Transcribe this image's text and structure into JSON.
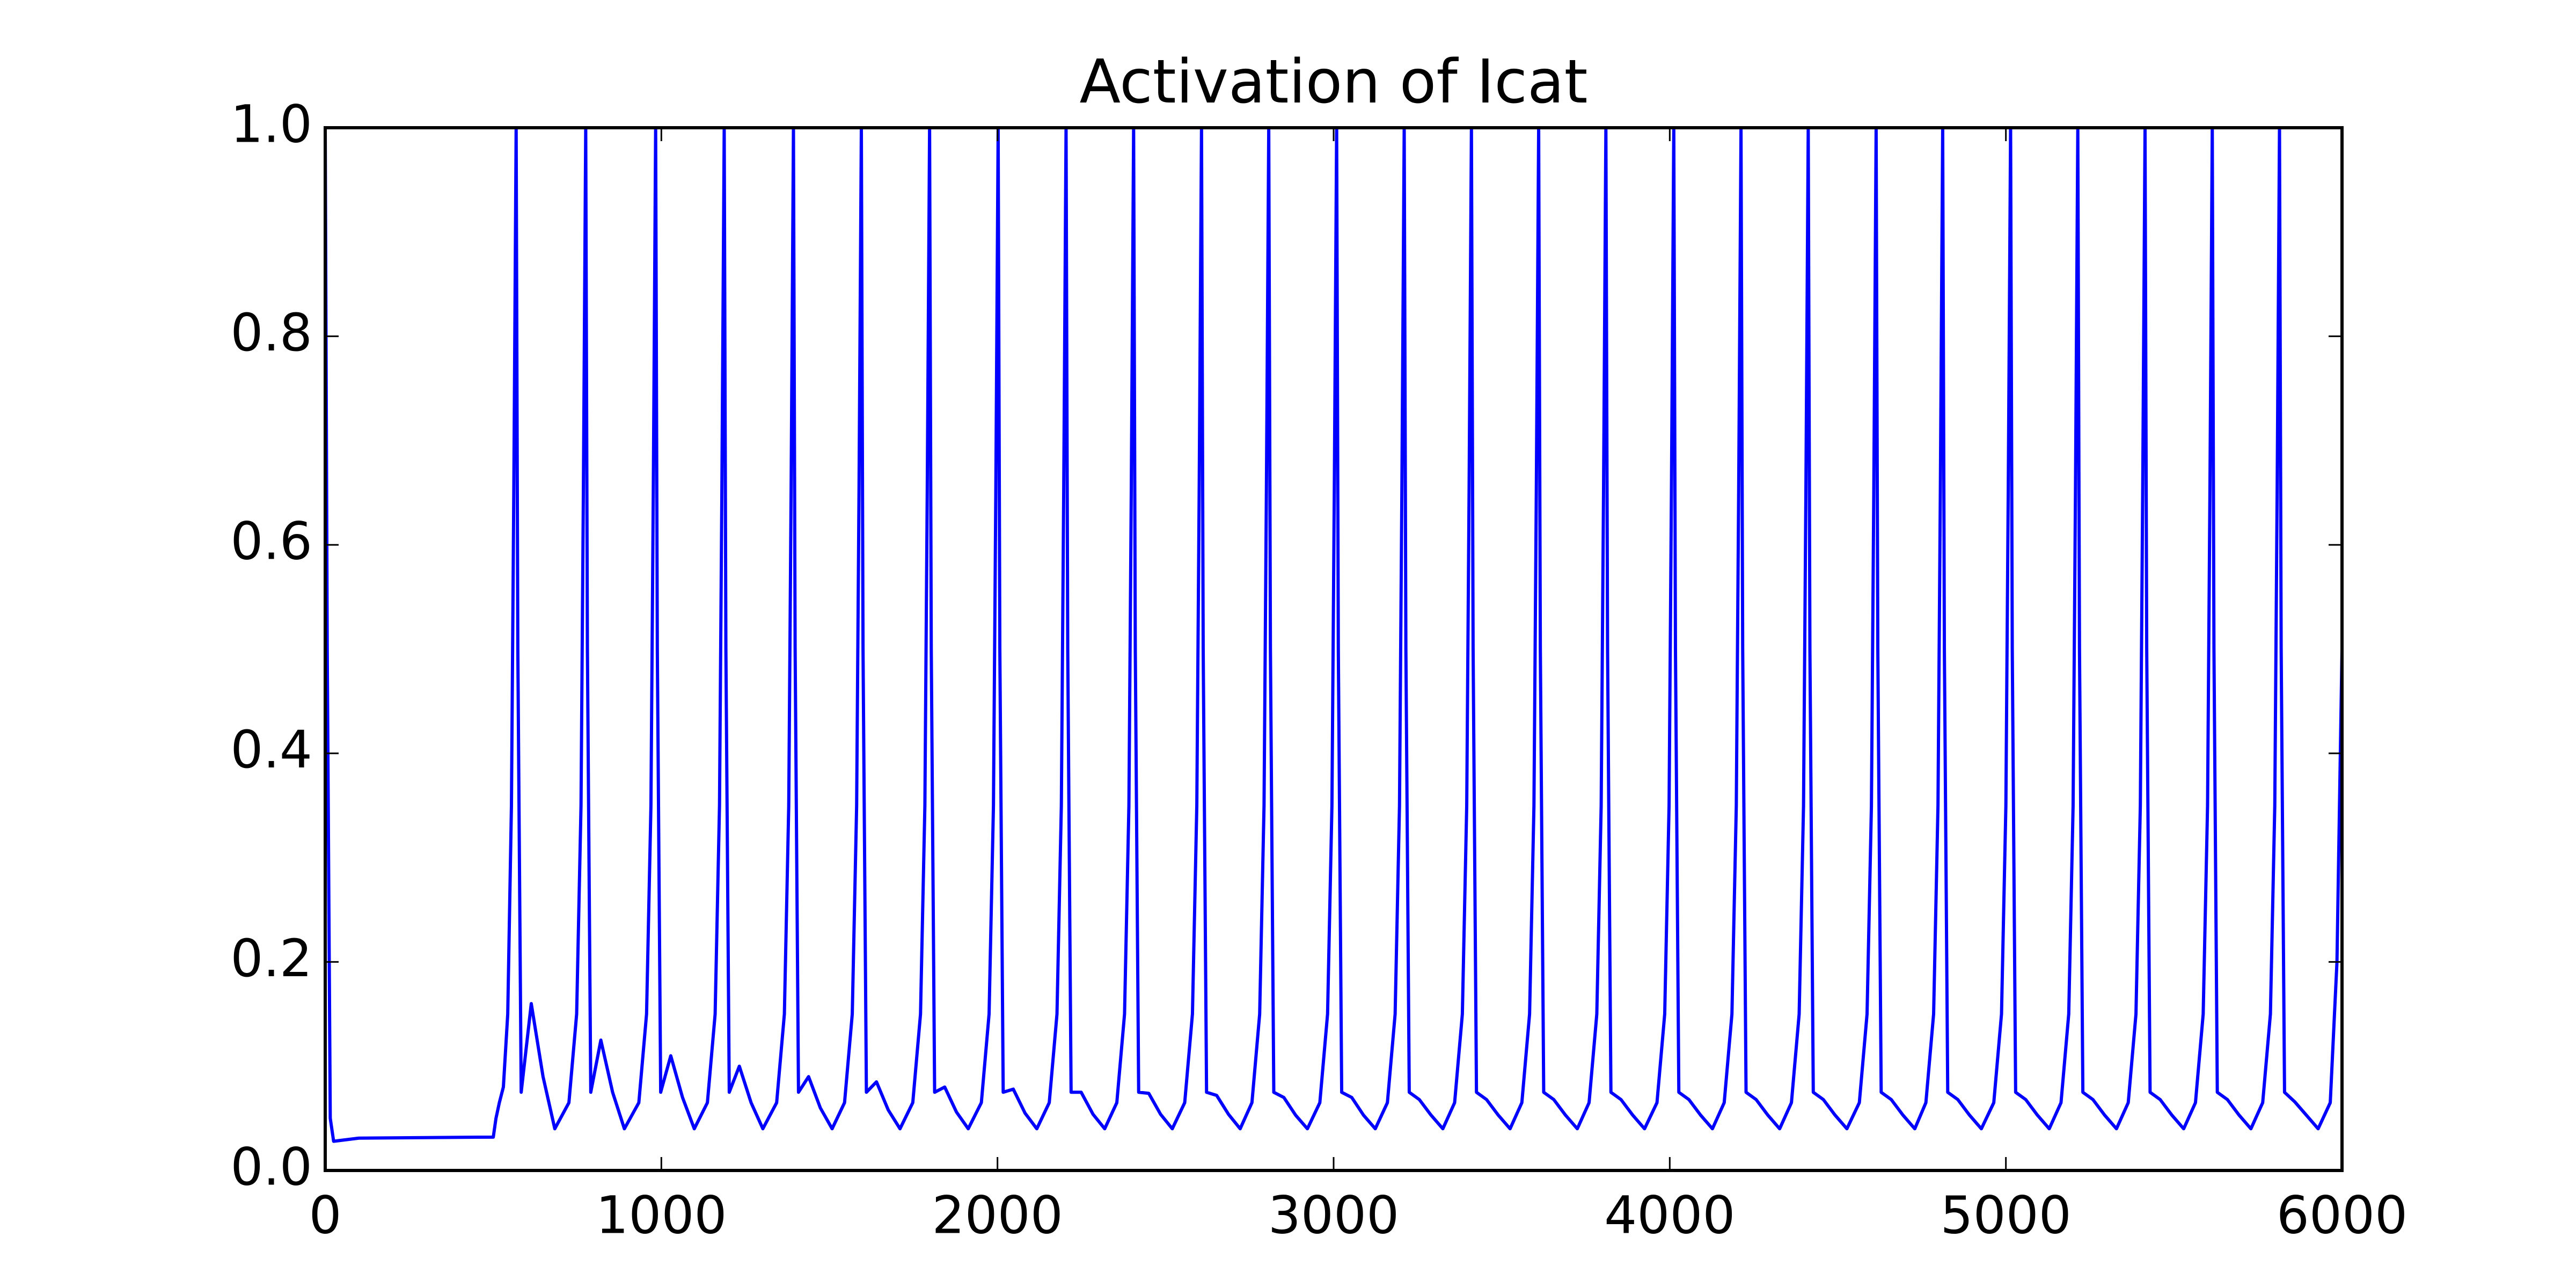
{
  "chart_data": {
    "type": "line",
    "title": "Activation of Icat",
    "color": "#0000ff",
    "xlim": [
      0,
      6000
    ],
    "ylim": [
      0,
      1
    ],
    "xticks": [
      0,
      1000,
      2000,
      3000,
      4000,
      5000,
      6000
    ],
    "yticks": [
      {
        "value": 0,
        "label": "0.0"
      },
      0.2,
      0.4,
      0.6,
      0.8,
      {
        "value": 1,
        "label": "1.0"
      }
    ],
    "x": [
      0,
      6,
      15,
      25,
      100,
      500,
      508,
      518,
      530,
      543,
      554,
      561,
      568,
      573,
      583,
      613,
      648,
      683,
      725,
      748,
      761,
      768,
      775,
      780,
      790,
      820,
      855,
      890,
      933,
      956,
      969,
      976,
      983,
      988,
      998,
      1028,
      1063,
      1098,
      1137,
      1160,
      1173,
      1180,
      1187,
      1192,
      1202,
      1232,
      1267,
      1302,
      1343,
      1366,
      1379,
      1386,
      1393,
      1398,
      1408,
      1438,
      1473,
      1508,
      1545,
      1568,
      1581,
      1588,
      1595,
      1600,
      1610,
      1640,
      1675,
      1710,
      1748,
      1771,
      1784,
      1791,
      1798,
      1803,
      1813,
      1843,
      1878,
      1913,
      1952,
      1975,
      1988,
      1995,
      2002,
      2007,
      2017,
      2047,
      2082,
      2117,
      2154,
      2177,
      2190,
      2197,
      2204,
      2209,
      2219,
      2249,
      2284,
      2319,
      2355,
      2378,
      2391,
      2398,
      2405,
      2410,
      2420,
      2450,
      2485,
      2520,
      2557,
      2580,
      2593,
      2600,
      2607,
      2612,
      2622,
      2652,
      2687,
      2722,
      2757,
      2780,
      2793,
      2800,
      2807,
      2812,
      2822,
      2852,
      2887,
      2922,
      2959,
      2982,
      2995,
      3002,
      3009,
      3014,
      3024,
      3054,
      3089,
      3124,
      3160,
      3183,
      3196,
      3203,
      3210,
      3215,
      3225,
      3255,
      3290,
      3325,
      3360,
      3383,
      3396,
      3403,
      3410,
      3415,
      3425,
      3455,
      3490,
      3525,
      3560,
      3583,
      3596,
      3603,
      3610,
      3615,
      3625,
      3655,
      3690,
      3725,
      3760,
      3783,
      3796,
      3803,
      3810,
      3815,
      3825,
      3855,
      3890,
      3925,
      3962,
      3985,
      3998,
      4005,
      4012,
      4017,
      4027,
      4057,
      4092,
      4127,
      4162,
      4185,
      4198,
      4205,
      4212,
      4217,
      4227,
      4257,
      4292,
      4327,
      4362,
      4385,
      4398,
      4405,
      4412,
      4417,
      4427,
      4457,
      4492,
      4527,
      4564,
      4587,
      4600,
      4607,
      4614,
      4619,
      4629,
      4659,
      4694,
      4729,
      4762,
      4785,
      4798,
      4805,
      4812,
      4817,
      4827,
      4857,
      4892,
      4927,
      4964,
      4987,
      5000,
      5007,
      5014,
      5019,
      5029,
      5059,
      5094,
      5129,
      5164,
      5187,
      5200,
      5207,
      5214,
      5219,
      5229,
      5259,
      5294,
      5329,
      5364,
      5387,
      5400,
      5407,
      5414,
      5419,
      5429,
      5459,
      5494,
      5529,
      5564,
      5587,
      5600,
      5607,
      5614,
      5619,
      5629,
      5659,
      5694,
      5729,
      5764,
      5787,
      5800,
      5807,
      5814,
      5819,
      5829,
      5859,
      5894,
      5929,
      5965,
      5985,
      6000
    ],
    "values": [
      1.0,
      0.5,
      0.05,
      0.028,
      0.031,
      0.032,
      0.05,
      0.065,
      0.08,
      0.15,
      0.35,
      0.65,
      1.0,
      0.5,
      0.075,
      0.16,
      0.09,
      0.04,
      0.065,
      0.15,
      0.35,
      0.65,
      1.0,
      0.5,
      0.075,
      0.125,
      0.075,
      0.04,
      0.065,
      0.15,
      0.35,
      0.65,
      1.0,
      0.5,
      0.075,
      0.11,
      0.07,
      0.04,
      0.065,
      0.15,
      0.35,
      0.65,
      1.0,
      0.5,
      0.075,
      0.1,
      0.065,
      0.04,
      0.065,
      0.15,
      0.35,
      0.65,
      1.0,
      0.5,
      0.075,
      0.09,
      0.06,
      0.04,
      0.065,
      0.15,
      0.35,
      0.65,
      1.0,
      0.5,
      0.075,
      0.085,
      0.058,
      0.04,
      0.065,
      0.15,
      0.35,
      0.65,
      1.0,
      0.5,
      0.075,
      0.08,
      0.056,
      0.04,
      0.065,
      0.15,
      0.35,
      0.65,
      1.0,
      0.5,
      0.075,
      0.078,
      0.055,
      0.04,
      0.065,
      0.15,
      0.35,
      0.65,
      1.0,
      0.5,
      0.075,
      0.075,
      0.054,
      0.04,
      0.065,
      0.15,
      0.35,
      0.65,
      1.0,
      0.5,
      0.075,
      0.074,
      0.054,
      0.04,
      0.065,
      0.15,
      0.35,
      0.65,
      1.0,
      0.5,
      0.075,
      0.072,
      0.054,
      0.04,
      0.065,
      0.15,
      0.35,
      0.65,
      1.0,
      0.5,
      0.075,
      0.07,
      0.053,
      0.04,
      0.065,
      0.15,
      0.35,
      0.65,
      1.0,
      0.5,
      0.075,
      0.07,
      0.053,
      0.04,
      0.065,
      0.15,
      0.35,
      0.65,
      1.0,
      0.5,
      0.075,
      0.068,
      0.053,
      0.04,
      0.065,
      0.15,
      0.35,
      0.65,
      1.0,
      0.5,
      0.075,
      0.068,
      0.053,
      0.04,
      0.065,
      0.15,
      0.35,
      0.65,
      1.0,
      0.5,
      0.075,
      0.068,
      0.053,
      0.04,
      0.065,
      0.15,
      0.35,
      0.65,
      1.0,
      0.5,
      0.075,
      0.068,
      0.053,
      0.04,
      0.065,
      0.15,
      0.35,
      0.65,
      1.0,
      0.5,
      0.075,
      0.068,
      0.053,
      0.04,
      0.065,
      0.15,
      0.35,
      0.65,
      1.0,
      0.5,
      0.075,
      0.068,
      0.053,
      0.04,
      0.065,
      0.15,
      0.35,
      0.65,
      1.0,
      0.5,
      0.075,
      0.068,
      0.053,
      0.04,
      0.065,
      0.15,
      0.35,
      0.65,
      1.0,
      0.5,
      0.075,
      0.068,
      0.053,
      0.04,
      0.065,
      0.15,
      0.35,
      0.65,
      1.0,
      0.5,
      0.075,
      0.068,
      0.053,
      0.04,
      0.065,
      0.15,
      0.35,
      0.65,
      1.0,
      0.5,
      0.075,
      0.068,
      0.053,
      0.04,
      0.065,
      0.15,
      0.35,
      0.65,
      1.0,
      0.5,
      0.075,
      0.068,
      0.053,
      0.04,
      0.065,
      0.15,
      0.35,
      0.65,
      1.0,
      0.5,
      0.075,
      0.068,
      0.053,
      0.04,
      0.065,
      0.15,
      0.35,
      0.65,
      1.0,
      0.5,
      0.075,
      0.068,
      0.053,
      0.04,
      0.065,
      0.15,
      0.35,
      0.65,
      1.0,
      0.5,
      0.075,
      0.066,
      0.053,
      0.04,
      0.065,
      0.2,
      0.5
    ]
  }
}
